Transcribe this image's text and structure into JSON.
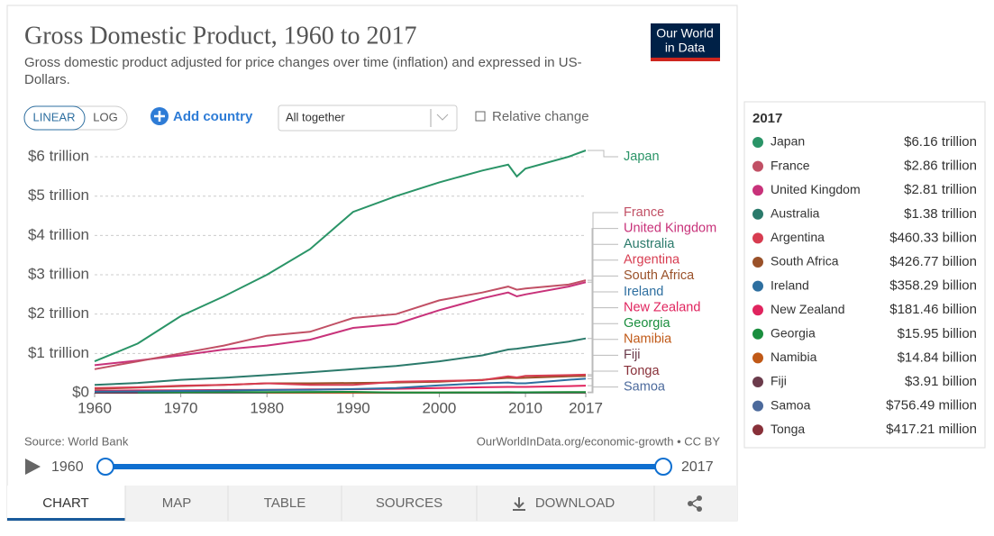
{
  "chart_data": {
    "type": "line",
    "title": "Gross Domestic Product, 1960 to 2017",
    "subtitle": "Gross domestic product adjusted for price changes over time (inflation) and expressed in US-Dollars.",
    "x": [
      1960,
      1965,
      1970,
      1975,
      1980,
      1985,
      1990,
      1995,
      2000,
      2005,
      2008,
      2009,
      2010,
      2015,
      2017
    ],
    "xlim": [
      1960,
      2017
    ],
    "xticks": [
      1960,
      1970,
      1980,
      1990,
      2000,
      2010,
      2017
    ],
    "ylim": [
      0,
      6.2
    ],
    "yticks": [
      {
        "value": 0,
        "label": "$0"
      },
      {
        "value": 1,
        "label": "$1 trillion"
      },
      {
        "value": 2,
        "label": "$2 trillion"
      },
      {
        "value": 3,
        "label": "$3 trillion"
      },
      {
        "value": 4,
        "label": "$4 trillion"
      },
      {
        "value": 5,
        "label": "$5 trillion"
      },
      {
        "value": 6,
        "label": "$6 trillion"
      }
    ],
    "grid": true,
    "series": [
      {
        "name": "Japan",
        "color": "#2a9467",
        "values": [
          0.8,
          1.25,
          1.95,
          2.45,
          3.0,
          3.65,
          4.6,
          5.0,
          5.35,
          5.65,
          5.8,
          5.5,
          5.7,
          6.0,
          6.16
        ],
        "tooltip_label": "$6.16 trillion"
      },
      {
        "name": "France",
        "color": "#c15065",
        "values": [
          0.6,
          0.8,
          1.0,
          1.2,
          1.45,
          1.55,
          1.9,
          2.0,
          2.35,
          2.55,
          2.7,
          2.62,
          2.65,
          2.75,
          2.86
        ],
        "tooltip_label": "$2.86 trillion"
      },
      {
        "name": "United Kingdom",
        "color": "#c8327a",
        "values": [
          0.7,
          0.82,
          0.95,
          1.1,
          1.2,
          1.35,
          1.65,
          1.75,
          2.1,
          2.4,
          2.55,
          2.45,
          2.5,
          2.7,
          2.81
        ],
        "tooltip_label": "$2.81 trillion"
      },
      {
        "name": "Australia",
        "color": "#2b7a6b",
        "values": [
          0.2,
          0.25,
          0.33,
          0.38,
          0.45,
          0.52,
          0.6,
          0.68,
          0.8,
          0.95,
          1.1,
          1.12,
          1.15,
          1.3,
          1.38
        ],
        "tooltip_label": "$1.38 trillion"
      },
      {
        "name": "Argentina",
        "color": "#d73c50",
        "values": [
          0.12,
          0.14,
          0.18,
          0.2,
          0.24,
          0.2,
          0.2,
          0.28,
          0.3,
          0.32,
          0.42,
          0.39,
          0.43,
          0.45,
          0.46033
        ],
        "tooltip_label": "$460.33 billion"
      },
      {
        "name": "South Africa",
        "color": "#9a5129",
        "values": [
          0.1,
          0.13,
          0.17,
          0.2,
          0.24,
          0.24,
          0.25,
          0.26,
          0.28,
          0.33,
          0.38,
          0.37,
          0.38,
          0.42,
          0.42677
        ],
        "tooltip_label": "$426.77 billion"
      },
      {
        "name": "Ireland",
        "color": "#2e6fa0",
        "values": [
          0.03,
          0.035,
          0.045,
          0.055,
          0.07,
          0.075,
          0.095,
          0.12,
          0.19,
          0.24,
          0.26,
          0.24,
          0.24,
          0.33,
          0.35829
        ],
        "tooltip_label": "$358.29 billion"
      },
      {
        "name": "New Zealand",
        "color": "#e0245e",
        "values": [
          0.05,
          0.06,
          0.065,
          0.07,
          0.075,
          0.085,
          0.09,
          0.1,
          0.12,
          0.14,
          0.15,
          0.15,
          0.15,
          0.17,
          0.18146
        ],
        "tooltip_label": "$181.46 billion"
      },
      {
        "name": "Georgia",
        "color": "#1a8e3e",
        "values": [
          null,
          0.01,
          0.012,
          0.015,
          0.018,
          0.02,
          0.022,
          0.007,
          0.008,
          0.01,
          0.013,
          0.012,
          0.012,
          0.015,
          0.01595
        ],
        "tooltip_label": "$15.95 billion"
      },
      {
        "name": "Namibia",
        "color": "#c05917",
        "values": [
          null,
          null,
          null,
          null,
          0.006,
          0.006,
          0.006,
          0.007,
          0.008,
          0.01,
          0.011,
          0.011,
          0.012,
          0.014,
          0.01484
        ],
        "tooltip_label": "$14.84 billion"
      },
      {
        "name": "Fiji",
        "color": "#6b3b4b",
        "values": [
          0.0009,
          0.001,
          0.0012,
          0.0015,
          0.002,
          0.0021,
          0.0024,
          0.0027,
          0.003,
          0.0033,
          0.0034,
          0.0033,
          0.0034,
          0.0037,
          0.00391
        ],
        "tooltip_label": "$3.91 billion"
      },
      {
        "name": "Samoa",
        "color": "#4c6a9c",
        "values": [
          null,
          null,
          null,
          null,
          null,
          null,
          null,
          null,
          0.0006,
          0.0007,
          0.0007,
          0.0007,
          0.0007,
          0.00074,
          0.00075649
        ],
        "tooltip_label": "$756.49 million"
      },
      {
        "name": "Tonga",
        "color": "#883039",
        "values": [
          null,
          null,
          null,
          null,
          null,
          null,
          null,
          null,
          0.0003,
          0.00033,
          0.00035,
          0.00035,
          0.00036,
          0.0004,
          0.00041721
        ],
        "tooltip_label": "$417.21 million"
      }
    ]
  },
  "ui": {
    "logo": [
      "Our World",
      "in Data"
    ],
    "scale_buttons": [
      "LINEAR",
      "LOG"
    ],
    "add_country": "Add country",
    "dropdown": "All together",
    "relative_change": "Relative change",
    "source": "Source: World Bank",
    "credit": "OurWorldInData.org/economic-growth • CC BY",
    "tabs": [
      "CHART",
      "MAP",
      "TABLE",
      "SOURCES",
      "DOWNLOAD"
    ]
  }
}
